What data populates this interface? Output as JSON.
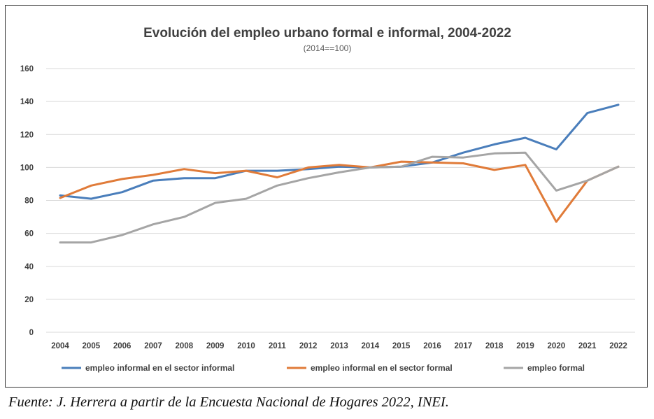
{
  "chart_data": {
    "type": "line",
    "title": "Evolución del empleo urbano formal e informal, 2004-2022",
    "subtitle": "(2014==100)",
    "xlabel": "",
    "ylabel": "",
    "x": [
      "2004",
      "2005",
      "2006",
      "2007",
      "2008",
      "2009",
      "2010",
      "2011",
      "2012",
      "2013",
      "2014",
      "2015",
      "2016",
      "2017",
      "2018",
      "2019",
      "2020",
      "2021",
      "2022"
    ],
    "ylim": [
      0,
      160
    ],
    "yticks": [
      0,
      20,
      40,
      60,
      80,
      100,
      120,
      140,
      160
    ],
    "grid": true,
    "legend_position": "bottom",
    "series": [
      {
        "name": "empleo informal en el sector informal",
        "color": "#4a7ebb",
        "values": [
          83,
          81,
          85,
          92,
          93.5,
          93.5,
          98,
          98,
          99,
          100.5,
          100,
          100.5,
          103,
          109,
          114,
          118,
          111,
          133,
          138
        ]
      },
      {
        "name": "empleo informal en el sector formal",
        "color": "#e07b39",
        "values": [
          81.5,
          89,
          93,
          95.5,
          99,
          96.5,
          98,
          94,
          100,
          101.5,
          100,
          103.5,
          103,
          102.5,
          98.5,
          101.5,
          67,
          92,
          100.5
        ]
      },
      {
        "name": "empleo formal",
        "color": "#a5a5a5",
        "values": [
          54.5,
          54.5,
          59,
          65.5,
          70,
          78.5,
          81,
          89,
          93.5,
          97,
          100,
          100.5,
          106.5,
          106,
          108.5,
          109,
          86,
          92,
          100.5
        ]
      }
    ]
  },
  "source_note": "Fuente: J. Herrera a partir de la Encuesta Nacional de Hogares 2022, INEI."
}
